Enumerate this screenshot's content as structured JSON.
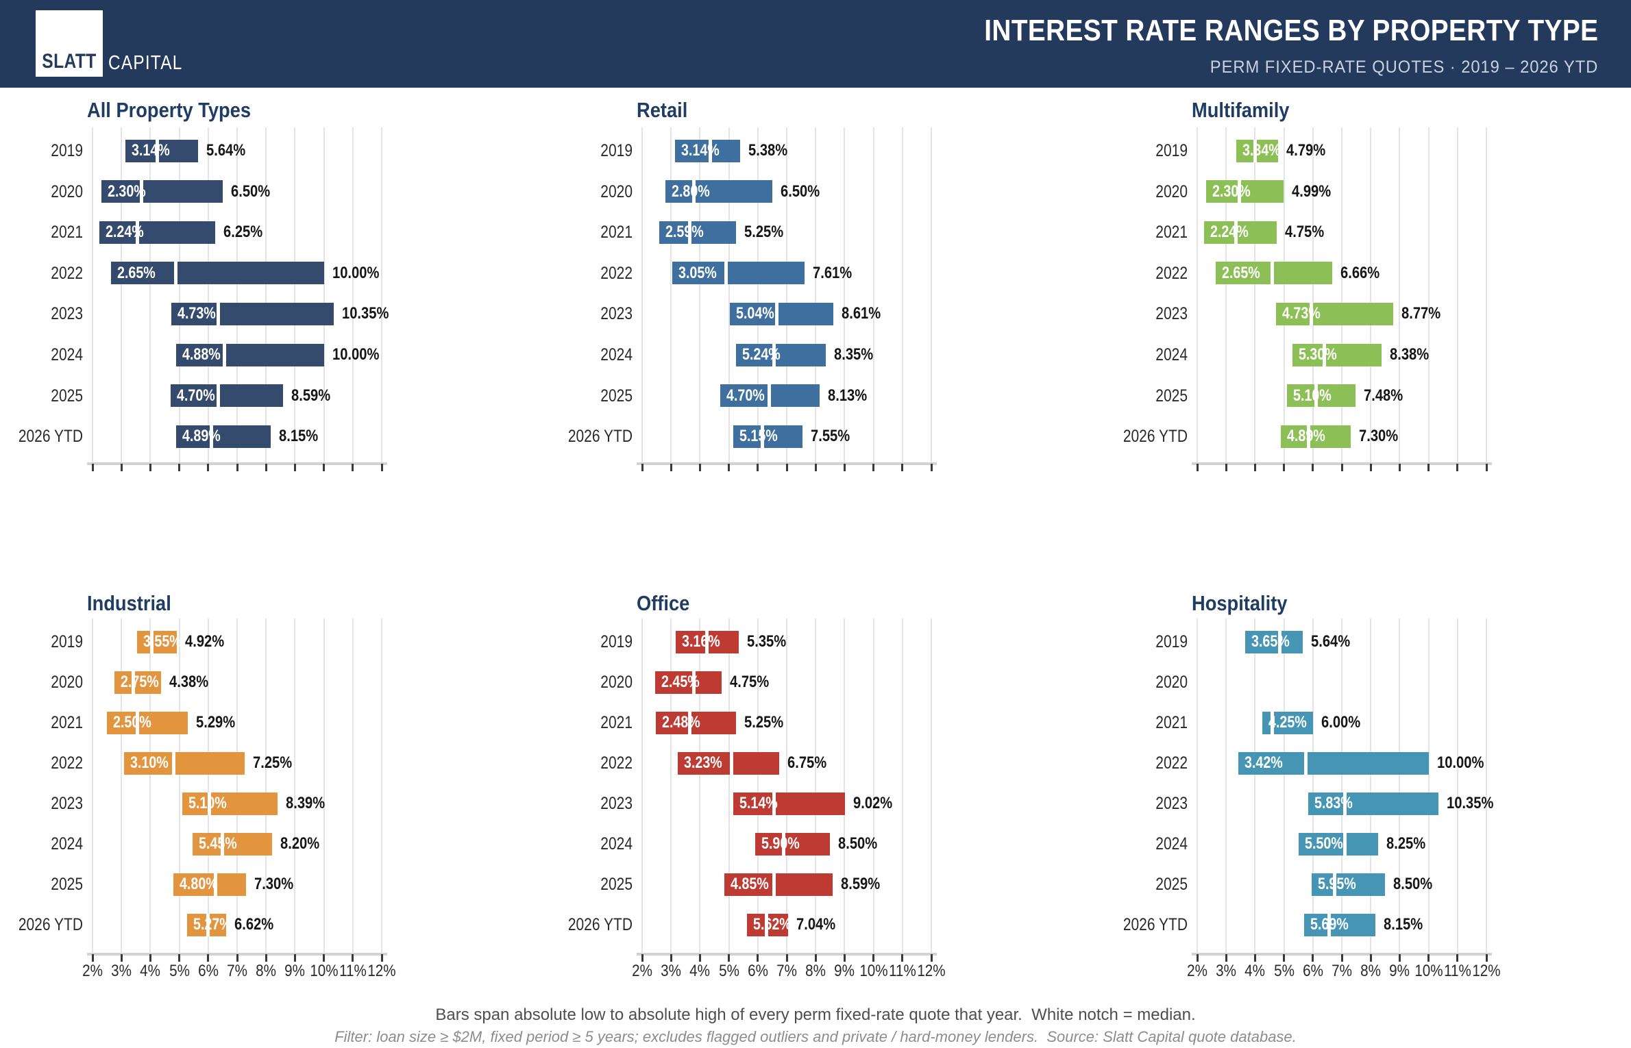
{
  "header": {
    "logo_primary": "SLATT",
    "logo_secondary": "CAPITAL",
    "title": "INTEREST RATE RANGES BY PROPERTY TYPE",
    "subtitle": "PERM FIXED-RATE QUOTES · 2019 – 2026 YTD"
  },
  "colors": {
    "header_background": "#233a5c",
    "chart_title": "#1e3c64",
    "gridline": "#e4e4e4",
    "axis_line": "#d2d2d2",
    "median_notch": "#ffffff"
  },
  "axis": {
    "min": 2,
    "max": 12,
    "tick_labels": [
      "2%",
      "3%",
      "4%",
      "5%",
      "6%",
      "7%",
      "8%",
      "9%",
      "10%",
      "11%",
      "12%"
    ],
    "tick_labels_visible_rows": "bottom row only"
  },
  "years": [
    "2019",
    "2020",
    "2021",
    "2022",
    "2023",
    "2024",
    "2025",
    "2026 YTD"
  ],
  "chart_data": [
    {
      "type": "bar",
      "orientation": "horizontal-range",
      "title": "All Property Types",
      "color": "#344b6d",
      "xlim": [
        2,
        12
      ],
      "bars": [
        {
          "year": "2019",
          "low": 3.14,
          "high": 5.64,
          "median": 4.25
        },
        {
          "year": "2020",
          "low": 2.3,
          "high": 6.5,
          "median": 3.7
        },
        {
          "year": "2021",
          "low": 2.24,
          "high": 6.25,
          "median": 3.55
        },
        {
          "year": "2022",
          "low": 2.65,
          "high": 10.0,
          "median": 4.88
        },
        {
          "year": "2023",
          "low": 4.73,
          "high": 10.35,
          "median": 6.35
        },
        {
          "year": "2024",
          "low": 4.88,
          "high": 10.0,
          "median": 6.55
        },
        {
          "year": "2025",
          "low": 4.7,
          "high": 8.59,
          "median": 6.35
        },
        {
          "year": "2026 YTD",
          "low": 4.89,
          "high": 8.15,
          "median": 6.1
        }
      ]
    },
    {
      "type": "bar",
      "orientation": "horizontal-range",
      "title": "Retail",
      "color": "#3e6f9f",
      "xlim": [
        2,
        12
      ],
      "bars": [
        {
          "year": "2019",
          "low": 3.14,
          "high": 5.38,
          "median": 4.35
        },
        {
          "year": "2020",
          "low": 2.8,
          "high": 6.5,
          "median": 3.8
        },
        {
          "year": "2021",
          "low": 2.59,
          "high": 5.25,
          "median": 3.65
        },
        {
          "year": "2022",
          "low": 3.05,
          "high": 7.61,
          "median": 4.9
        },
        {
          "year": "2023",
          "low": 5.04,
          "high": 8.61,
          "median": 6.65
        },
        {
          "year": "2024",
          "low": 5.24,
          "high": 8.35,
          "median": 6.55
        },
        {
          "year": "2025",
          "low": 4.7,
          "high": 8.13,
          "median": 6.4
        },
        {
          "year": "2026 YTD",
          "low": 5.15,
          "high": 7.55,
          "median": 6.15
        }
      ]
    },
    {
      "type": "bar",
      "orientation": "horizontal-range",
      "title": "Multifamily",
      "color": "#8cbf55",
      "xlim": [
        2,
        12
      ],
      "bars": [
        {
          "year": "2019",
          "low": 3.34,
          "high": 4.79,
          "median": 4.0
        },
        {
          "year": "2020",
          "low": 2.3,
          "high": 4.99,
          "median": 3.45
        },
        {
          "year": "2021",
          "low": 2.24,
          "high": 4.75,
          "median": 3.35
        },
        {
          "year": "2022",
          "low": 2.65,
          "high": 6.66,
          "median": 4.6
        },
        {
          "year": "2023",
          "low": 4.73,
          "high": 8.77,
          "median": 5.95
        },
        {
          "year": "2024",
          "low": 5.3,
          "high": 8.38,
          "median": 6.4
        },
        {
          "year": "2025",
          "low": 5.1,
          "high": 7.48,
          "median": 6.1
        },
        {
          "year": "2026 YTD",
          "low": 4.89,
          "high": 7.3,
          "median": 5.85
        }
      ]
    },
    {
      "type": "bar",
      "orientation": "horizontal-range",
      "title": "Industrial",
      "color": "#e2943f",
      "xlim": [
        2,
        12
      ],
      "bars": [
        {
          "year": "2019",
          "low": 3.55,
          "high": 4.92,
          "median": 4.05
        },
        {
          "year": "2020",
          "low": 2.75,
          "high": 4.38,
          "median": 3.4
        },
        {
          "year": "2021",
          "low": 2.5,
          "high": 5.29,
          "median": 3.55
        },
        {
          "year": "2022",
          "low": 3.1,
          "high": 7.25,
          "median": 4.8
        },
        {
          "year": "2023",
          "low": 5.1,
          "high": 8.39,
          "median": 6.05
        },
        {
          "year": "2024",
          "low": 5.45,
          "high": 8.2,
          "median": 6.5
        },
        {
          "year": "2025",
          "low": 4.8,
          "high": 7.3,
          "median": 6.25
        },
        {
          "year": "2026 YTD",
          "low": 5.27,
          "high": 6.62,
          "median": 6.0
        }
      ]
    },
    {
      "type": "bar",
      "orientation": "horizontal-range",
      "title": "Office",
      "color": "#be3b33",
      "xlim": [
        2,
        12
      ],
      "bars": [
        {
          "year": "2019",
          "low": 3.16,
          "high": 5.35,
          "median": 4.25
        },
        {
          "year": "2020",
          "low": 2.45,
          "high": 4.75,
          "median": 3.8
        },
        {
          "year": "2021",
          "low": 2.48,
          "high": 5.25,
          "median": 3.65
        },
        {
          "year": "2022",
          "low": 3.23,
          "high": 6.75,
          "median": 5.1
        },
        {
          "year": "2023",
          "low": 5.14,
          "high": 9.02,
          "median": 6.55
        },
        {
          "year": "2024",
          "low": 5.9,
          "high": 8.5,
          "median": 6.9
        },
        {
          "year": "2025",
          "low": 4.85,
          "high": 8.59,
          "median": 6.55
        },
        {
          "year": "2026 YTD",
          "low": 5.62,
          "high": 7.04,
          "median": 6.3
        }
      ]
    },
    {
      "type": "bar",
      "orientation": "horizontal-range",
      "title": "Hospitality",
      "color": "#4795b5",
      "xlim": [
        2,
        12
      ],
      "bars": [
        {
          "year": "2019",
          "low": 3.65,
          "high": 5.64,
          "median": 4.85
        },
        {
          "year": "2020",
          "low": null,
          "high": null,
          "median": null
        },
        {
          "year": "2021",
          "low": 4.25,
          "high": 6.0,
          "median": 4.6
        },
        {
          "year": "2022",
          "low": 3.42,
          "high": 10.0,
          "median": 5.75
        },
        {
          "year": "2023",
          "low": 5.83,
          "high": 10.35,
          "median": 7.1
        },
        {
          "year": "2024",
          "low": 5.5,
          "high": 8.25,
          "median": 7.1
        },
        {
          "year": "2025",
          "low": 5.95,
          "high": 8.5,
          "median": 6.75
        },
        {
          "year": "2026 YTD",
          "low": 5.69,
          "high": 8.15,
          "median": 6.55
        }
      ]
    }
  ],
  "footnotes": {
    "line1": "Bars span absolute low to absolute high of every perm fixed-rate quote that year.  White notch = median.",
    "line2": "Filter: loan size ≥ $2M, fixed period ≥ 5 years; excludes flagged outliers and private / hard-money lenders.  Source: Slatt Capital quote database."
  }
}
